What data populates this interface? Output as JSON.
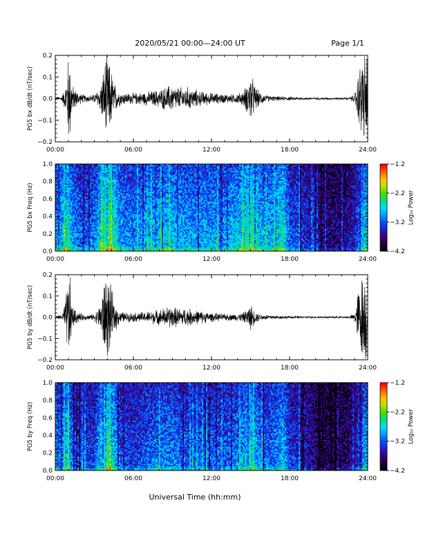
{
  "header": {
    "title": "2020/05/21  00:00—24:00 UT",
    "page": "Page 1/1"
  },
  "xlabel": "Universal Time (hh:mm)",
  "colors": {
    "trace": "#000000",
    "colormap": [
      "#000000",
      "#200040",
      "#3a0080",
      "#2020d0",
      "#0050ff",
      "#00a0ff",
      "#00e0ff",
      "#00e080",
      "#40e000",
      "#c0e000",
      "#ffc000",
      "#ff6000",
      "#ff0000"
    ]
  },
  "chart_data": [
    {
      "type": "line",
      "ylabel": "PG5 bx dB/dt (nT/sec)",
      "xlim": [
        0,
        24
      ],
      "ylim": [
        -0.2,
        0.2
      ],
      "xticks": [
        "00:00",
        "06:00",
        "12:00",
        "18:00",
        "24:00"
      ],
      "yticks": [
        "−0.2",
        "−0.1",
        "0.0",
        "0.1",
        "0.2"
      ],
      "envelope": {
        "x_hours": [
          0,
          0.5,
          0.8,
          1.0,
          1.1,
          1.3,
          1.6,
          2.0,
          2.6,
          3.0,
          3.4,
          3.7,
          3.9,
          4.2,
          4.6,
          5.0,
          5.5,
          6.0,
          7.0,
          8.0,
          8.8,
          9.5,
          10.2,
          11.0,
          12.0,
          13.0,
          13.8,
          14.4,
          14.8,
          15.0,
          15.3,
          15.7,
          16.2,
          17.0,
          18.0,
          19.0,
          20.0,
          21.0,
          22.0,
          22.6,
          23.0,
          23.3,
          23.6,
          24.0
        ],
        "amplitude": [
          0.008,
          0.01,
          0.06,
          0.2,
          0.2,
          0.06,
          0.04,
          0.02,
          0.015,
          0.02,
          0.05,
          0.12,
          0.2,
          0.15,
          0.06,
          0.03,
          0.025,
          0.025,
          0.03,
          0.04,
          0.06,
          0.05,
          0.05,
          0.035,
          0.025,
          0.02,
          0.02,
          0.03,
          0.07,
          0.12,
          0.06,
          0.03,
          0.015,
          0.01,
          0.008,
          0.006,
          0.005,
          0.005,
          0.005,
          0.006,
          0.02,
          0.12,
          0.2,
          0.2
        ]
      }
    },
    {
      "type": "heatmap",
      "ylabel": "PG5 bx Freq (Hz)",
      "xlim": [
        0,
        24
      ],
      "ylim": [
        0,
        1
      ],
      "xticks": [
        "00:00",
        "06:00",
        "12:00",
        "18:00",
        "24:00"
      ],
      "yticks": [
        "0.0",
        "0.2",
        "0.4",
        "0.6",
        "0.8",
        "1.0"
      ],
      "colorbar": {
        "label": "Log₁₀ Power",
        "range": [
          -4.2,
          -1.2
        ],
        "ticks": [
          "−1.2",
          "−2.2",
          "−3.2",
          "−4.2"
        ]
      },
      "activity": {
        "x_hours": [
          0,
          0.5,
          1.0,
          1.3,
          2.0,
          3.0,
          3.5,
          4.0,
          4.5,
          5.0,
          6.0,
          7.0,
          8.0,
          9.0,
          10.0,
          11.0,
          12.0,
          13.0,
          14.0,
          14.5,
          15.0,
          16.0,
          17.0,
          17.5,
          18.0,
          19.0,
          20.0,
          21.0,
          22.0,
          23.0,
          23.5,
          24.0
        ],
        "level": [
          0.45,
          0.5,
          0.6,
          0.45,
          0.35,
          0.4,
          0.55,
          0.7,
          0.6,
          0.45,
          0.4,
          0.45,
          0.5,
          0.5,
          0.45,
          0.45,
          0.45,
          0.45,
          0.5,
          0.55,
          0.65,
          0.45,
          0.5,
          0.6,
          0.35,
          0.3,
          0.2,
          0.15,
          0.15,
          0.25,
          0.45,
          0.55
        ]
      }
    },
    {
      "type": "line",
      "ylabel": "PG5 by dB/dt (nT/sec)",
      "xlim": [
        0,
        24
      ],
      "ylim": [
        -0.2,
        0.2
      ],
      "xticks": [
        "00:00",
        "06:00",
        "12:00",
        "18:00",
        "24:00"
      ],
      "yticks": [
        "−0.2",
        "−0.1",
        "0.0",
        "0.1",
        "0.2"
      ],
      "envelope": {
        "x_hours": [
          0,
          0.5,
          0.8,
          1.0,
          1.1,
          1.3,
          1.6,
          2.0,
          2.6,
          3.0,
          3.4,
          3.7,
          3.9,
          4.2,
          4.6,
          5.0,
          5.5,
          6.0,
          7.0,
          8.0,
          8.8,
          9.5,
          10.2,
          11.0,
          12.0,
          13.0,
          13.8,
          14.4,
          14.8,
          15.0,
          15.3,
          15.7,
          16.2,
          17.0,
          18.0,
          19.0,
          20.0,
          21.0,
          22.0,
          22.6,
          23.0,
          23.3,
          23.6,
          24.0
        ],
        "amplitude": [
          0.008,
          0.01,
          0.08,
          0.2,
          0.2,
          0.05,
          0.03,
          0.015,
          0.012,
          0.015,
          0.05,
          0.15,
          0.2,
          0.15,
          0.06,
          0.025,
          0.02,
          0.02,
          0.025,
          0.035,
          0.05,
          0.04,
          0.04,
          0.03,
          0.02,
          0.015,
          0.015,
          0.02,
          0.04,
          0.06,
          0.03,
          0.015,
          0.012,
          0.008,
          0.006,
          0.005,
          0.004,
          0.004,
          0.004,
          0.005,
          0.02,
          0.14,
          0.2,
          0.2
        ]
      }
    },
    {
      "type": "heatmap",
      "ylabel": "PG5 by Freq (Hz)",
      "xlim": [
        0,
        24
      ],
      "ylim": [
        0,
        1
      ],
      "xticks": [
        "00:00",
        "06:00",
        "12:00",
        "18:00",
        "24:00"
      ],
      "yticks": [
        "0.0",
        "0.2",
        "0.4",
        "0.6",
        "0.8",
        "1.0"
      ],
      "colorbar": {
        "label": "Log₁₀ Power",
        "range": [
          -4.2,
          -1.2
        ],
        "ticks": [
          "−1.2",
          "−2.2",
          "−3.2",
          "−4.2"
        ]
      },
      "activity": {
        "x_hours": [
          0,
          0.5,
          1.0,
          1.3,
          2.0,
          3.0,
          3.5,
          4.0,
          4.5,
          5.0,
          6.0,
          7.0,
          8.0,
          9.0,
          10.0,
          11.0,
          12.0,
          13.0,
          14.0,
          14.5,
          15.0,
          16.0,
          17.0,
          17.5,
          18.0,
          19.0,
          20.0,
          21.0,
          22.0,
          23.0,
          23.5,
          24.0
        ],
        "level": [
          0.35,
          0.4,
          0.55,
          0.35,
          0.3,
          0.3,
          0.5,
          0.65,
          0.5,
          0.35,
          0.3,
          0.35,
          0.4,
          0.4,
          0.35,
          0.35,
          0.35,
          0.35,
          0.4,
          0.45,
          0.55,
          0.35,
          0.4,
          0.5,
          0.3,
          0.25,
          0.15,
          0.1,
          0.1,
          0.2,
          0.4,
          0.5
        ]
      }
    }
  ]
}
